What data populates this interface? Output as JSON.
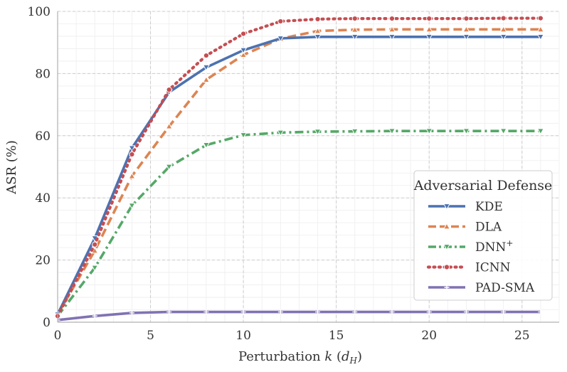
{
  "chart_data": {
    "type": "line",
    "xlabel": "Perturbation k (d_H)",
    "ylabel": "ASR (%)",
    "xlim": [
      0,
      27
    ],
    "ylim": [
      0,
      100
    ],
    "xticks": [
      0,
      5,
      10,
      15,
      20,
      25
    ],
    "yticks": [
      0,
      20,
      40,
      60,
      80,
      100
    ],
    "grid": true,
    "legend": {
      "title": "Adversarial Defense",
      "placement": "center-right"
    },
    "x": [
      0,
      2,
      4,
      6,
      8,
      10,
      12,
      14,
      16,
      18,
      20,
      22,
      24,
      26
    ],
    "series": [
      {
        "name": "KDE",
        "color": "#4c72b0",
        "dash": "solid",
        "marker": "triangle-down",
        "values": [
          2.5,
          27,
          56,
          74,
          82,
          87.5,
          91.3,
          91.8,
          91.8,
          91.8,
          91.8,
          91.8,
          91.8,
          91.8
        ]
      },
      {
        "name": "DLA",
        "color": "#dd8452",
        "dash": "dashed",
        "marker": "triangle-up",
        "values": [
          2.5,
          23,
          47,
          63,
          78,
          86,
          91.2,
          93.7,
          94.1,
          94.2,
          94.2,
          94.2,
          94.2,
          94.2
        ]
      },
      {
        "name": "DNN+",
        "color": "#55a868",
        "dash": "dashdot",
        "marker": "triangle-down",
        "values": [
          2,
          17.5,
          37.5,
          50,
          57,
          60.2,
          61,
          61.3,
          61.4,
          61.5,
          61.5,
          61.5,
          61.5,
          61.5
        ]
      },
      {
        "name": "ICNN",
        "color": "#c44e52",
        "dash": "dotted",
        "marker": "circle",
        "values": [
          2,
          25,
          54,
          74.8,
          85.8,
          92.8,
          96.8,
          97.5,
          97.7,
          97.7,
          97.7,
          97.7,
          97.8,
          97.8
        ]
      },
      {
        "name": "PAD-SMA",
        "color": "#8172b3",
        "dash": "solid",
        "marker": "plus",
        "values": [
          0.7,
          2,
          3,
          3.3,
          3.3,
          3.3,
          3.3,
          3.3,
          3.3,
          3.3,
          3.3,
          3.3,
          3.3,
          3.3
        ]
      }
    ]
  }
}
